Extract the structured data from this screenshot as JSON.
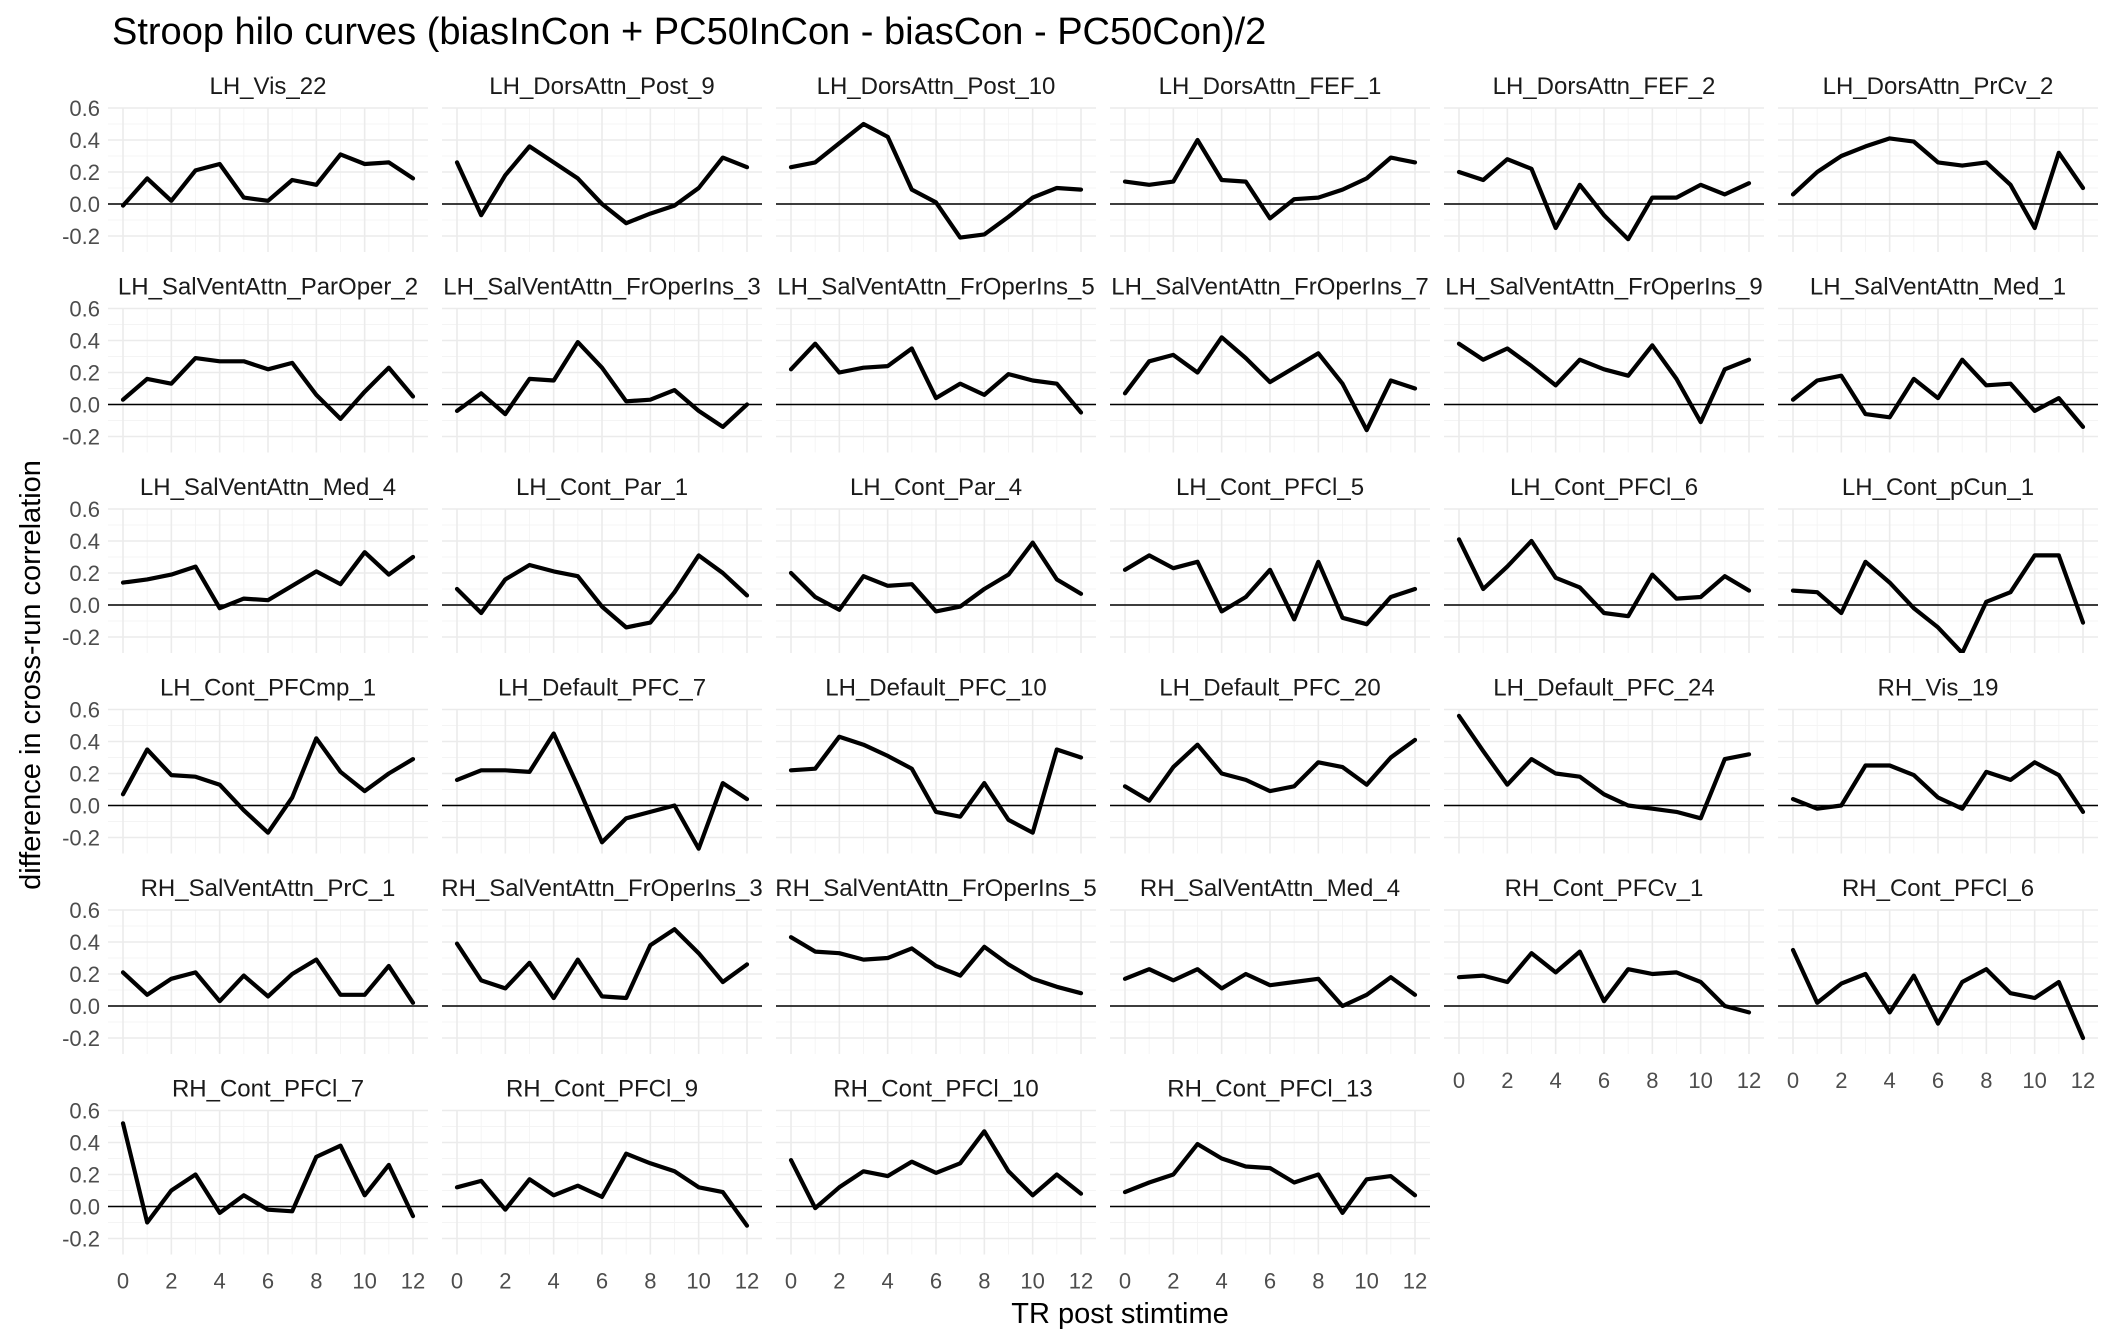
{
  "chart_data": {
    "type": "line",
    "title": "Stroop hilo curves (biasInCon + PC50InCon - biasCon - PC50Con)/2",
    "xlabel": "TR post stimtime",
    "ylabel": "difference in cross-run correlation",
    "x": [
      0,
      1,
      2,
      3,
      4,
      5,
      6,
      7,
      8,
      9,
      10,
      11,
      12
    ],
    "xlim": [
      0,
      12
    ],
    "ylim": [
      -0.3,
      0.6
    ],
    "x_ticks": [
      0,
      2,
      4,
      6,
      8,
      10,
      12
    ],
    "x_tick_labels": [
      "0",
      "2",
      "4",
      "6",
      "8",
      "10",
      "12"
    ],
    "y_ticks": [
      -0.2,
      0.0,
      0.2,
      0.4,
      0.6
    ],
    "y_tick_labels": [
      "-0.2",
      "0.0",
      "0.2",
      "0.4",
      "0.6"
    ],
    "hline": 0,
    "grid": true,
    "layout": "facet_wrap, 6 columns",
    "series_color": "#000000",
    "panels": [
      {
        "name": "LH_Vis_22",
        "values": [
          -0.01,
          0.16,
          0.02,
          0.21,
          0.25,
          0.04,
          0.02,
          0.15,
          0.12,
          0.31,
          0.25,
          0.26,
          0.16
        ]
      },
      {
        "name": "LH_DorsAttn_Post_9",
        "values": [
          0.26,
          -0.07,
          0.18,
          0.36,
          0.26,
          0.16,
          0.0,
          -0.12,
          -0.06,
          -0.01,
          0.1,
          0.29,
          0.23
        ]
      },
      {
        "name": "LH_DorsAttn_Post_10",
        "values": [
          0.23,
          0.26,
          0.38,
          0.5,
          0.42,
          0.09,
          0.01,
          -0.21,
          -0.19,
          -0.08,
          0.04,
          0.1,
          0.09
        ]
      },
      {
        "name": "LH_DorsAttn_FEF_1",
        "values": [
          0.14,
          0.12,
          0.14,
          0.4,
          0.15,
          0.14,
          -0.09,
          0.03,
          0.04,
          0.09,
          0.16,
          0.29,
          0.26
        ]
      },
      {
        "name": "LH_DorsAttn_FEF_2",
        "values": [
          0.2,
          0.15,
          0.28,
          0.22,
          -0.15,
          0.12,
          -0.07,
          -0.22,
          0.04,
          0.04,
          0.12,
          0.06,
          0.13
        ]
      },
      {
        "name": "LH_DorsAttn_PrCv_2",
        "values": [
          0.06,
          0.2,
          0.3,
          0.36,
          0.41,
          0.39,
          0.26,
          0.24,
          0.26,
          0.12,
          -0.15,
          0.32,
          0.1
        ]
      },
      {
        "name": "LH_SalVentAttn_ParOper_2",
        "values": [
          0.03,
          0.16,
          0.13,
          0.29,
          0.27,
          0.27,
          0.22,
          0.26,
          0.06,
          -0.09,
          0.08,
          0.23,
          0.05
        ]
      },
      {
        "name": "LH_SalVentAttn_FrOperIns_3",
        "values": [
          -0.04,
          0.07,
          -0.06,
          0.16,
          0.15,
          0.39,
          0.23,
          0.02,
          0.03,
          0.09,
          -0.04,
          -0.14,
          0.0
        ]
      },
      {
        "name": "LH_SalVentAttn_FrOperIns_5",
        "values": [
          0.22,
          0.38,
          0.2,
          0.23,
          0.24,
          0.35,
          0.04,
          0.13,
          0.06,
          0.19,
          0.15,
          0.13,
          -0.05
        ]
      },
      {
        "name": "LH_SalVentAttn_FrOperIns_7",
        "values": [
          0.07,
          0.27,
          0.31,
          0.2,
          0.42,
          0.29,
          0.14,
          0.23,
          0.32,
          0.13,
          -0.16,
          0.15,
          0.1
        ]
      },
      {
        "name": "LH_SalVentAttn_FrOperIns_9",
        "values": [
          0.38,
          0.28,
          0.35,
          0.24,
          0.12,
          0.28,
          0.22,
          0.18,
          0.37,
          0.16,
          -0.11,
          0.22,
          0.28
        ]
      },
      {
        "name": "LH_SalVentAttn_Med_1",
        "values": [
          0.03,
          0.15,
          0.18,
          -0.06,
          -0.08,
          0.16,
          0.04,
          0.28,
          0.12,
          0.13,
          -0.04,
          0.04,
          -0.14
        ]
      },
      {
        "name": "LH_SalVentAttn_Med_4",
        "values": [
          0.14,
          0.16,
          0.19,
          0.24,
          -0.02,
          0.04,
          0.03,
          0.12,
          0.21,
          0.13,
          0.33,
          0.19,
          0.3
        ]
      },
      {
        "name": "LH_Cont_Par_1",
        "values": [
          0.1,
          -0.05,
          0.16,
          0.25,
          0.21,
          0.18,
          -0.01,
          -0.14,
          -0.11,
          0.08,
          0.31,
          0.2,
          0.06
        ]
      },
      {
        "name": "LH_Cont_Par_4",
        "values": [
          0.2,
          0.05,
          -0.03,
          0.18,
          0.12,
          0.13,
          -0.04,
          -0.01,
          0.1,
          0.19,
          0.39,
          0.16,
          0.07
        ]
      },
      {
        "name": "LH_Cont_PFCl_5",
        "values": [
          0.22,
          0.31,
          0.23,
          0.27,
          -0.04,
          0.05,
          0.22,
          -0.09,
          0.27,
          -0.08,
          -0.12,
          0.05,
          0.1
        ]
      },
      {
        "name": "LH_Cont_PFCl_6",
        "values": [
          0.41,
          0.1,
          0.24,
          0.4,
          0.17,
          0.11,
          -0.05,
          -0.07,
          0.19,
          0.04,
          0.05,
          0.18,
          0.09
        ]
      },
      {
        "name": "LH_Cont_pCun_1",
        "values": [
          0.09,
          0.08,
          -0.05,
          0.27,
          0.14,
          -0.02,
          -0.14,
          -0.3,
          0.02,
          0.08,
          0.31,
          0.31,
          -0.11
        ]
      },
      {
        "name": "LH_Cont_PFCmp_1",
        "values": [
          0.07,
          0.35,
          0.19,
          0.18,
          0.13,
          -0.03,
          -0.17,
          0.05,
          0.42,
          0.21,
          0.09,
          0.2,
          0.29
        ]
      },
      {
        "name": "LH_Default_PFC_7",
        "values": [
          0.16,
          0.22,
          0.22,
          0.21,
          0.45,
          0.12,
          -0.23,
          -0.08,
          -0.04,
          0.0,
          -0.27,
          0.14,
          0.04
        ]
      },
      {
        "name": "LH_Default_PFC_10",
        "values": [
          0.22,
          0.23,
          0.43,
          0.38,
          0.31,
          0.23,
          -0.04,
          -0.07,
          0.14,
          -0.09,
          -0.17,
          0.35,
          0.3
        ]
      },
      {
        "name": "LH_Default_PFC_20",
        "values": [
          0.12,
          0.03,
          0.24,
          0.38,
          0.2,
          0.16,
          0.09,
          0.12,
          0.27,
          0.24,
          0.13,
          0.3,
          0.41
        ]
      },
      {
        "name": "LH_Default_PFC_24",
        "values": [
          0.56,
          0.34,
          0.13,
          0.29,
          0.2,
          0.18,
          0.07,
          0.0,
          -0.02,
          -0.04,
          -0.08,
          0.29,
          0.32
        ]
      },
      {
        "name": "RH_Vis_19",
        "values": [
          0.04,
          -0.02,
          0.0,
          0.25,
          0.25,
          0.19,
          0.05,
          -0.02,
          0.21,
          0.16,
          0.27,
          0.19,
          -0.04
        ]
      },
      {
        "name": "RH_SalVentAttn_PrC_1",
        "values": [
          0.21,
          0.07,
          0.17,
          0.21,
          0.03,
          0.19,
          0.06,
          0.2,
          0.29,
          0.07,
          0.07,
          0.25,
          0.02
        ]
      },
      {
        "name": "RH_SalVentAttn_FrOperIns_3",
        "values": [
          0.39,
          0.16,
          0.11,
          0.27,
          0.05,
          0.29,
          0.06,
          0.05,
          0.38,
          0.48,
          0.33,
          0.15,
          0.26
        ]
      },
      {
        "name": "RH_SalVentAttn_FrOperIns_5",
        "values": [
          0.43,
          0.34,
          0.33,
          0.29,
          0.3,
          0.36,
          0.25,
          0.19,
          0.37,
          0.26,
          0.17,
          0.12,
          0.08
        ]
      },
      {
        "name": "RH_SalVentAttn_Med_4",
        "values": [
          0.17,
          0.23,
          0.16,
          0.23,
          0.11,
          0.2,
          0.13,
          0.15,
          0.17,
          0.0,
          0.07,
          0.18,
          0.07
        ]
      },
      {
        "name": "RH_Cont_PFCv_1",
        "values": [
          0.18,
          0.19,
          0.15,
          0.33,
          0.21,
          0.34,
          0.03,
          0.23,
          0.2,
          0.21,
          0.15,
          0.0,
          -0.04
        ]
      },
      {
        "name": "RH_Cont_PFCl_6",
        "values": [
          0.35,
          0.02,
          0.14,
          0.2,
          -0.04,
          0.19,
          -0.11,
          0.15,
          0.23,
          0.08,
          0.05,
          0.15,
          -0.2
        ]
      },
      {
        "name": "RH_Cont_PFCl_7",
        "values": [
          0.52,
          -0.1,
          0.1,
          0.2,
          -0.04,
          0.07,
          -0.02,
          -0.03,
          0.31,
          0.38,
          0.07,
          0.26,
          -0.06
        ]
      },
      {
        "name": "RH_Cont_PFCl_9",
        "values": [
          0.12,
          0.16,
          -0.02,
          0.17,
          0.07,
          0.13,
          0.06,
          0.33,
          0.27,
          0.22,
          0.12,
          0.09,
          -0.12
        ]
      },
      {
        "name": "RH_Cont_PFCl_10",
        "values": [
          0.29,
          -0.01,
          0.12,
          0.22,
          0.19,
          0.28,
          0.21,
          0.27,
          0.47,
          0.22,
          0.07,
          0.2,
          0.08
        ]
      },
      {
        "name": "RH_Cont_PFCl_13",
        "values": [
          0.09,
          0.15,
          0.2,
          0.39,
          0.3,
          0.25,
          0.24,
          0.15,
          0.2,
          -0.04,
          0.17,
          0.19,
          0.07
        ]
      }
    ]
  }
}
